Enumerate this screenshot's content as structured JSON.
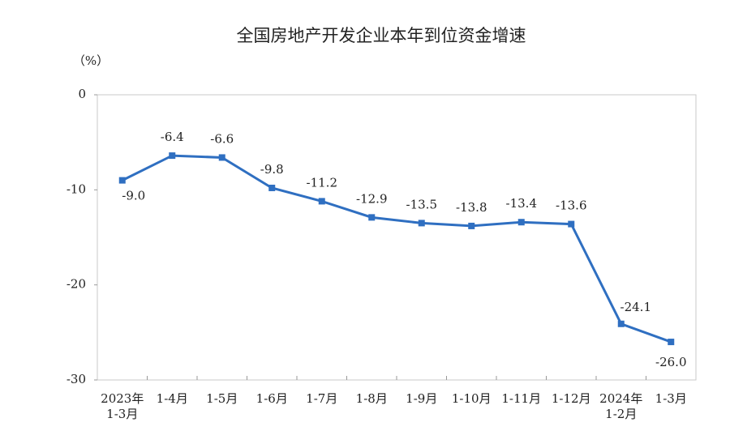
{
  "chart_data": {
    "type": "line",
    "title": "全国房地产开发企业本年到位资金增速",
    "y_label": "（%）",
    "categories": [
      "2023年\n1-3月",
      "1-4月",
      "1-5月",
      "1-6月",
      "1-7月",
      "1-8月",
      "1-9月",
      "1-10月",
      "1-11月",
      "1-12月",
      "2024年\n1-2月",
      "1-3月"
    ],
    "series": [
      {
        "color": "#2f6fc1",
        "values": [
          -9.0,
          -6.4,
          -6.6,
          -9.8,
          -11.2,
          -12.9,
          -13.5,
          -13.8,
          -13.4,
          -13.6,
          -24.1,
          -26.0
        ],
        "value_labels": [
          "-9.0",
          "-6.4",
          "-6.6",
          "-9.8",
          "-11.2",
          "-12.9",
          "-13.5",
          "-13.8",
          "-13.4",
          "-13.6",
          "-24.1",
          "-26.0"
        ]
      }
    ],
    "ylim": [
      -30,
      0
    ],
    "yticks": [
      0,
      -10,
      -20,
      -30
    ],
    "grid": false
  }
}
